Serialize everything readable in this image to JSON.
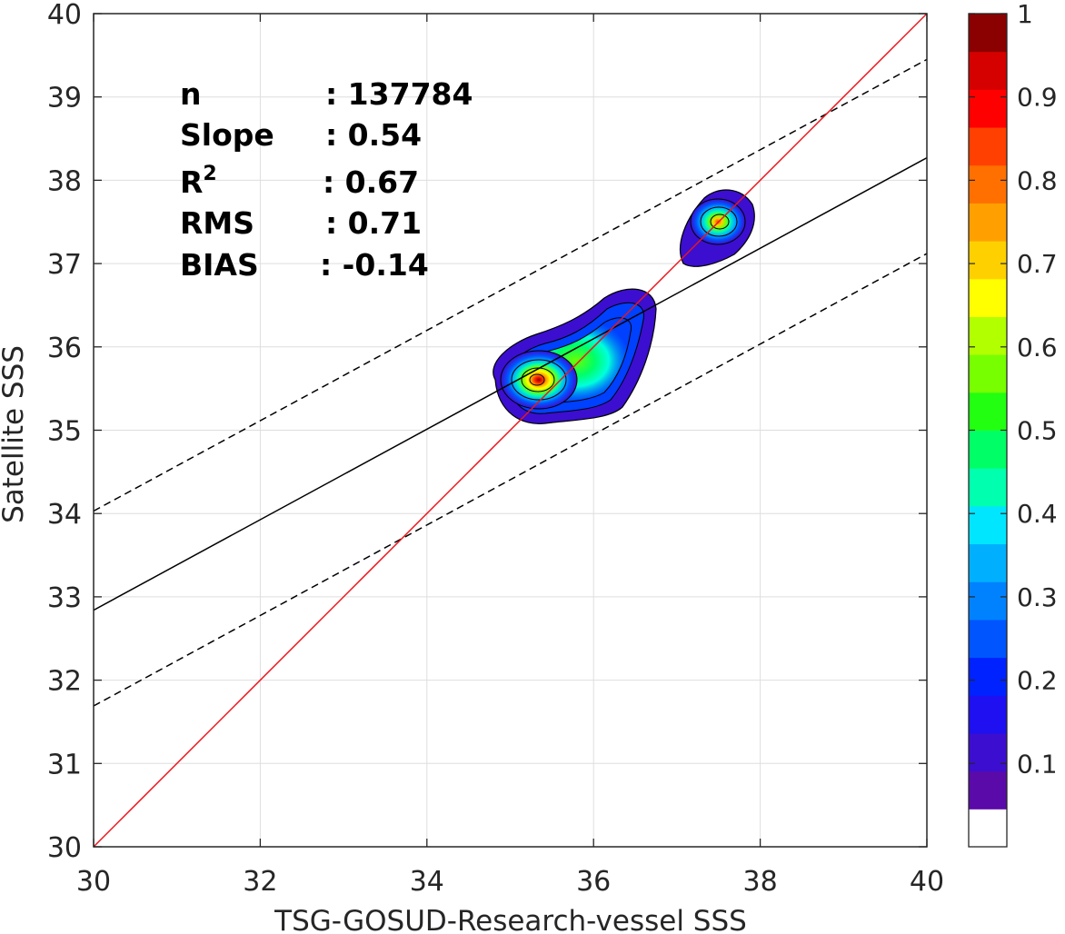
{
  "chart_data": {
    "type": "heatmap",
    "subtype": "scatter density contour",
    "xlabel": "TSG-GOSUD-Research-vessel SSS",
    "ylabel": "Satellite SSS",
    "xlim": [
      30,
      40
    ],
    "ylim": [
      30,
      40
    ],
    "x_ticks": [
      "30",
      "32",
      "34",
      "36",
      "38",
      "40"
    ],
    "y_ticks": [
      "30",
      "31",
      "32",
      "33",
      "34",
      "35",
      "36",
      "37",
      "38",
      "39",
      "40"
    ],
    "grid": true,
    "stats": [
      {
        "key": "n",
        "sup": "",
        "value": ": 137784"
      },
      {
        "key": "Slope",
        "sup": "",
        "value": ": 0.54"
      },
      {
        "key": "R",
        "sup": "2",
        "value": ": 0.67"
      },
      {
        "key": "RMS",
        "sup": "",
        "value": ": 0.71"
      },
      {
        "key": "BIAS",
        "sup": "",
        "value": ": -0.14"
      }
    ],
    "lines": {
      "identity": {
        "x": [
          30,
          40
        ],
        "y": [
          30,
          40
        ],
        "color": "#e8161b",
        "style": "solid"
      },
      "regression": {
        "x": [
          30,
          40
        ],
        "y": [
          32.84,
          38.27
        ],
        "color": "#000000",
        "style": "solid"
      },
      "upper_band": {
        "x": [
          30,
          40
        ],
        "y": [
          34.03,
          39.45
        ],
        "color": "#000000",
        "style": "dashed"
      },
      "lower_band": {
        "x": [
          30,
          40
        ],
        "y": [
          31.69,
          37.12
        ],
        "color": "#000000",
        "style": "dashed"
      }
    },
    "density_peaks": [
      {
        "name": "main",
        "x": 35.3,
        "y": 35.6,
        "level": 1.0
      },
      {
        "name": "shoulder",
        "x": 35.95,
        "y": 35.75,
        "level": 0.55
      },
      {
        "name": "upper",
        "x": 37.5,
        "y": 37.48,
        "level": 0.8
      }
    ],
    "colorbar": {
      "ticks": [
        "0.1",
        "0.2",
        "0.3",
        "0.4",
        "0.5",
        "0.6",
        "0.7",
        "0.8",
        "0.9",
        "1"
      ],
      "range": [
        0,
        1
      ],
      "colors": [
        "#ffffff",
        "#5a0aa8",
        "#3c0ed0",
        "#1e10f0",
        "#0022ff",
        "#0055ff",
        "#0082ff",
        "#00b0ff",
        "#00e6ff",
        "#00ffae",
        "#00ff66",
        "#22ff11",
        "#77ff00",
        "#b2ff00",
        "#ffff00",
        "#ffd000",
        "#ffa000",
        "#ff7000",
        "#ff4000",
        "#ff0000",
        "#d50000",
        "#8b0000"
      ]
    }
  }
}
